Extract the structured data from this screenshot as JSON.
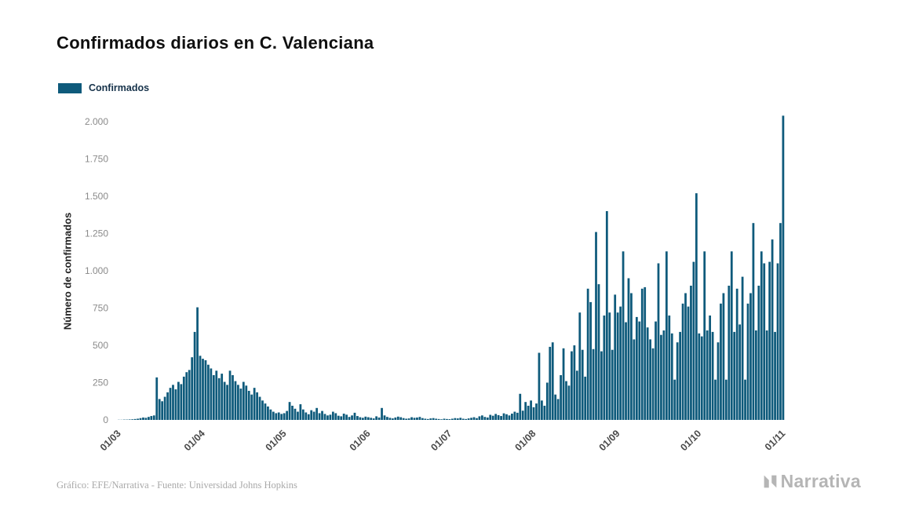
{
  "header": {
    "title": "Confirmados diarios en C. Valenciana"
  },
  "legend": {
    "label": "Confirmados"
  },
  "footer": {
    "attribution": "Gráfico: EFE/Narrativa - Fuente: Universidad Johns Hopkins",
    "brand": "Narrativa"
  },
  "colors": {
    "bar": "#0e5a7b",
    "brand_grey": "#b5b5b5"
  },
  "chart_data": {
    "type": "bar",
    "title": "Confirmados diarios en C. Valenciana",
    "xlabel": "",
    "ylabel": "Número de confirmados",
    "legend": [
      "Confirmados"
    ],
    "legend_position": "top-left",
    "grid": false,
    "bar_color": "#0e5a7b",
    "ylim": [
      0,
      2100
    ],
    "yticks": [
      0,
      250,
      500,
      750,
      1000,
      1250,
      1500,
      1750,
      2000
    ],
    "ytick_labels": [
      "0",
      "250",
      "500",
      "750",
      "1.000",
      "1.250",
      "1.500",
      "1.750",
      "2.000"
    ],
    "x_tick_labels": [
      "01/03",
      "01/04",
      "01/05",
      "01/06",
      "01/07",
      "01/08",
      "01/09",
      "01/10",
      "01/11"
    ],
    "x_tick_indices": [
      0,
      31,
      61,
      92,
      122,
      153,
      184,
      214,
      245
    ],
    "x_start": "01/03",
    "x_frequency": "daily",
    "values": [
      1,
      1,
      2,
      2,
      3,
      4,
      6,
      8,
      12,
      16,
      14,
      20,
      26,
      30,
      285,
      140,
      125,
      155,
      185,
      215,
      235,
      205,
      255,
      240,
      290,
      320,
      335,
      420,
      590,
      755,
      430,
      410,
      400,
      370,
      345,
      300,
      330,
      280,
      310,
      255,
      235,
      330,
      300,
      260,
      235,
      210,
      255,
      230,
      195,
      170,
      215,
      185,
      155,
      130,
      110,
      90,
      70,
      55,
      45,
      50,
      40,
      45,
      60,
      120,
      95,
      75,
      55,
      105,
      70,
      50,
      38,
      65,
      55,
      80,
      45,
      60,
      40,
      30,
      35,
      55,
      45,
      28,
      24,
      42,
      35,
      20,
      30,
      48,
      26,
      18,
      14,
      22,
      18,
      14,
      10,
      24,
      16,
      80,
      30,
      20,
      14,
      10,
      16,
      22,
      18,
      12,
      8,
      10,
      18,
      14,
      16,
      20,
      12,
      8,
      6,
      10,
      12,
      8,
      6,
      4,
      8,
      6,
      5,
      8,
      12,
      10,
      14,
      8,
      6,
      10,
      14,
      18,
      12,
      24,
      30,
      20,
      16,
      34,
      28,
      40,
      32,
      26,
      44,
      38,
      30,
      42,
      55,
      48,
      175,
      62,
      120,
      95,
      130,
      85,
      110,
      450,
      130,
      95,
      250,
      490,
      520,
      170,
      140,
      300,
      480,
      260,
      230,
      460,
      500,
      330,
      720,
      470,
      290,
      880,
      790,
      475,
      1260,
      910,
      460,
      700,
      1400,
      720,
      470,
      840,
      720,
      760,
      1130,
      655,
      950,
      850,
      540,
      690,
      660,
      880,
      890,
      620,
      540,
      480,
      660,
      1050,
      570,
      600,
      1130,
      700,
      580,
      270,
      520,
      590,
      780,
      850,
      760,
      900,
      1060,
      1520,
      580,
      560,
      1130,
      600,
      700,
      590,
      270,
      520,
      780,
      850,
      270,
      900,
      1130,
      590,
      880,
      640,
      960,
      270,
      780,
      850,
      1320,
      600,
      900,
      1130,
      1050,
      600,
      1060,
      1210,
      590,
      1050,
      1320,
      2040
    ]
  }
}
